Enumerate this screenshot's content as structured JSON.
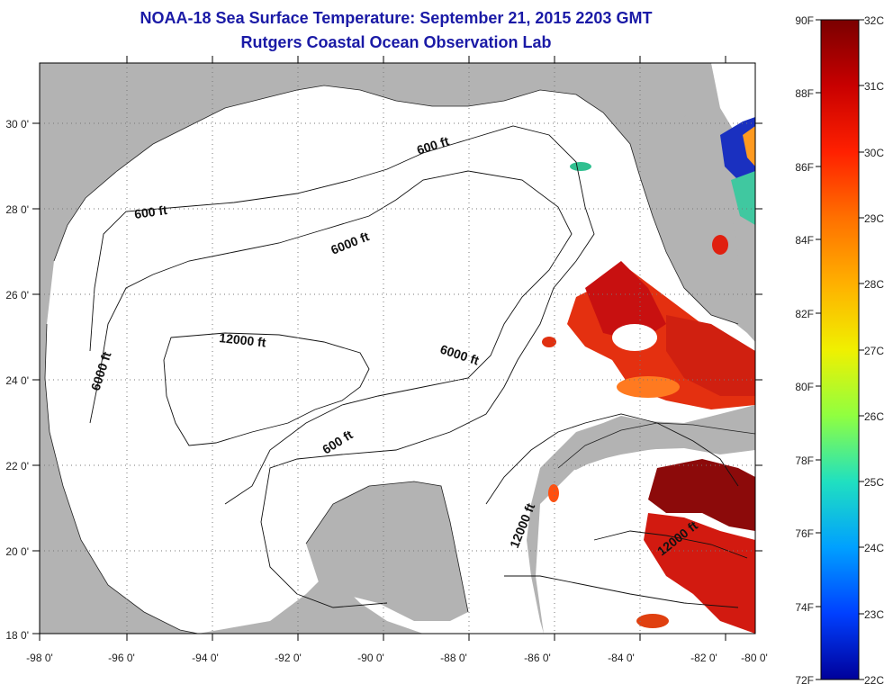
{
  "title": {
    "line1": "NOAA-18 Sea Surface Temperature:  September 21, 2015 2203 GMT",
    "line2": "Rutgers Coastal Ocean Observation Lab"
  },
  "map": {
    "lon_ticks": [
      "-98 0'",
      "-96 0'",
      "-94 0'",
      "-92 0'",
      "-90 0'",
      "-88 0'",
      "-86 0'",
      "-84 0'",
      "-82 0'",
      "-80 0'"
    ],
    "lat_ticks": [
      "18 0'",
      "20 0'",
      "22 0'",
      "24 0'",
      "26 0'",
      "28 0'",
      "30 0'"
    ],
    "contour_labels": [
      "600 ft",
      "600 ft",
      "6000 ft",
      "6000 ft",
      "12000 ft",
      "6000 ft",
      "600 ft",
      "12000 ft",
      "12000 ft"
    ],
    "colors": {
      "land": "#b3b3b3",
      "ocean": "#ffffff",
      "grid": "#888888",
      "title": "#1a1aa6"
    }
  },
  "colorbar": {
    "fahrenheit": [
      "90F",
      "88F",
      "86F",
      "84F",
      "82F",
      "80F",
      "78F",
      "76F",
      "74F",
      "72F"
    ],
    "celsius": [
      "32C",
      "31C",
      "30C",
      "29C",
      "28C",
      "27C",
      "26C",
      "25C",
      "24C",
      "23C",
      "22C"
    ],
    "gradient": [
      "#7a0000",
      "#c80000",
      "#ff2000",
      "#ff7000",
      "#ffb000",
      "#f0f000",
      "#90ff40",
      "#20e0c0",
      "#00a0ff",
      "#0040ff",
      "#00009a"
    ]
  }
}
